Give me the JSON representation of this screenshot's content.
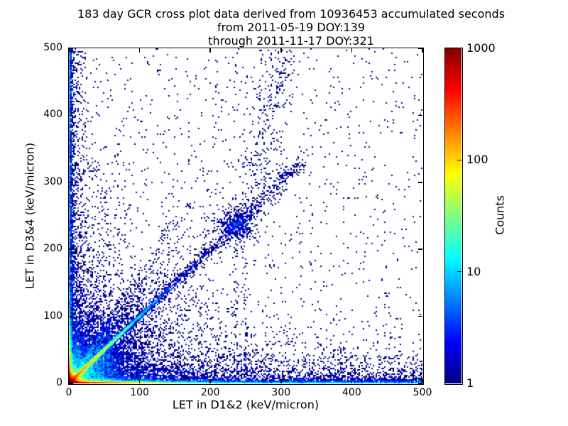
{
  "chart_data": {
    "type": "heatmap",
    "title_lines": [
      "183 day GCR cross plot data derived from 10936453 accumulated seconds",
      "from 2011-05-19 DOY:139",
      "through 2011-11-17 DOY:321"
    ],
    "xlabel": "LET in D1&2 (keV/micron)",
    "ylabel": "LET in D3&4 (keV/micron)",
    "xlim": [
      0,
      500
    ],
    "ylim": [
      0,
      500
    ],
    "xticks": [
      0,
      100,
      200,
      300,
      400,
      500
    ],
    "yticks": [
      0,
      100,
      200,
      300,
      400,
      500
    ],
    "grid": false,
    "colorbar": {
      "label": "Counts",
      "scale": "log",
      "min": 1,
      "max": 1000,
      "ticks": [
        1,
        10,
        100,
        1000
      ],
      "colormap": "jet",
      "stops": [
        "#000080",
        "#0000ff",
        "#0080ff",
        "#00ffff",
        "#80ff80",
        "#ffff00",
        "#ff8000",
        "#ff0000",
        "#800000"
      ]
    },
    "point_color_single_count": "#000080",
    "seed": 20110519,
    "bins": 2,
    "features": [
      {
        "kind": "exp2",
        "desc": "hot red spot at origin",
        "n": 18000,
        "sx": 4.5,
        "sy": 4.5
      },
      {
        "kind": "exp2",
        "desc": "bright band along x-axis, red near 0 fading to blue",
        "n": 16000,
        "sx": 45,
        "sy": 1.3
      },
      {
        "kind": "uxey",
        "desc": "continuous low-count band along full x-axis",
        "n": 2600,
        "sy": 1.6
      },
      {
        "kind": "uxey",
        "desc": "diffuse scatter just above x-axis across full range",
        "n": 2200,
        "sy": 14
      },
      {
        "kind": "exp2",
        "desc": "bright band along y-axis, orange near 0 fading upward",
        "n": 6000,
        "sx": 1.3,
        "sy": 25
      },
      {
        "kind": "exuy",
        "desc": "low-count band along full y-axis",
        "n": 2000,
        "sx": 1.6
      },
      {
        "kind": "exuy",
        "desc": "diffuse scatter right of y-axis",
        "n": 900,
        "sx": 9
      },
      {
        "kind": "exp2",
        "desc": "broad low-LET scatter above x-axis",
        "n": 2600,
        "sx": 130,
        "sy": 35
      },
      {
        "kind": "exp2",
        "desc": "broad low-LET scatter beside y-axis",
        "n": 1400,
        "sx": 28,
        "sy": 130
      },
      {
        "kind": "fan",
        "desc": "triangular fan of events spreading from origin",
        "n": 8000,
        "rscale": 42
      },
      {
        "kind": "diag_exp",
        "desc": "bright y=x correlation line from origin",
        "n": 10000,
        "tscale": 32,
        "width": 1.3
      },
      {
        "kind": "wedge",
        "desc": "diffuse spread around the diagonal near origin",
        "n": 2200,
        "tscale": 55,
        "smin": 0.45,
        "smax": 1.7
      },
      {
        "kind": "diag_u",
        "desc": "sparse diagonal continuation to high LET",
        "n": 700,
        "t0": 100,
        "t1": 330,
        "width": 6
      },
      {
        "kind": "cluster",
        "desc": "iron-group cluster on diagonal near LET 237",
        "n": 420,
        "cx": 237,
        "cy": 237,
        "sigma": 13
      },
      {
        "kind": "swath",
        "desc": "diffuse vertical drift above diagonal cluster",
        "n": 300,
        "x0": 255,
        "y0": 240,
        "y1": 500,
        "slope": 0.18,
        "width": 14
      },
      {
        "kind": "streaks",
        "desc": "vertical streaks at low LET in D1&2",
        "xs": [
          33,
          41,
          49,
          57
        ],
        "n": 110,
        "yscale": 55,
        "width": 1
      },
      {
        "kind": "streaks",
        "desc": "faint vertical streaks near cluster",
        "xs": [
          236,
          250
        ],
        "n": 60,
        "yscale": 140,
        "width": 1.5
      },
      {
        "kind": "uniform",
        "desc": "isolated single events across whole plane",
        "n": 1200
      }
    ]
  }
}
